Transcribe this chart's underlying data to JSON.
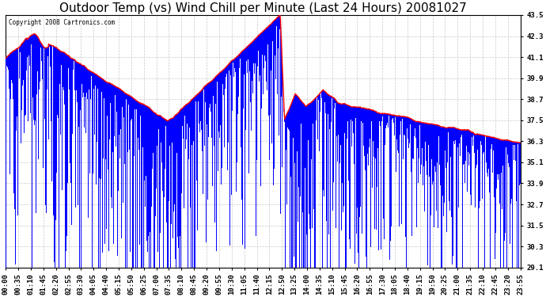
{
  "title": "Outdoor Temp (vs) Wind Chill per Minute (Last 24 Hours) 20081027",
  "copyright": "Copyright 2008 Cartronics.com",
  "ylabel_right_values": [
    43.5,
    42.3,
    41.1,
    39.9,
    38.7,
    37.5,
    36.3,
    35.1,
    33.9,
    32.7,
    31.5,
    30.3,
    29.1
  ],
  "ymin": 29.1,
  "ymax": 43.5,
  "background_color": "#ffffff",
  "plot_bg_color": "#ffffff",
  "grid_color": "#bbbbbb",
  "bar_color": "#0000ff",
  "line_color": "#ff0000",
  "title_fontsize": 11,
  "tick_fontsize": 6.5,
  "x_labels": [
    "00:00",
    "00:35",
    "01:10",
    "01:45",
    "02:20",
    "02:55",
    "03:30",
    "04:05",
    "04:40",
    "05:15",
    "05:50",
    "06:25",
    "07:00",
    "07:35",
    "08:10",
    "08:45",
    "09:20",
    "09:55",
    "10:30",
    "11:05",
    "11:40",
    "12:15",
    "12:50",
    "13:25",
    "14:00",
    "14:35",
    "15:10",
    "15:45",
    "16:20",
    "16:55",
    "17:30",
    "18:05",
    "18:40",
    "19:15",
    "19:50",
    "20:25",
    "21:00",
    "21:35",
    "22:10",
    "22:45",
    "23:20",
    "23:55"
  ]
}
